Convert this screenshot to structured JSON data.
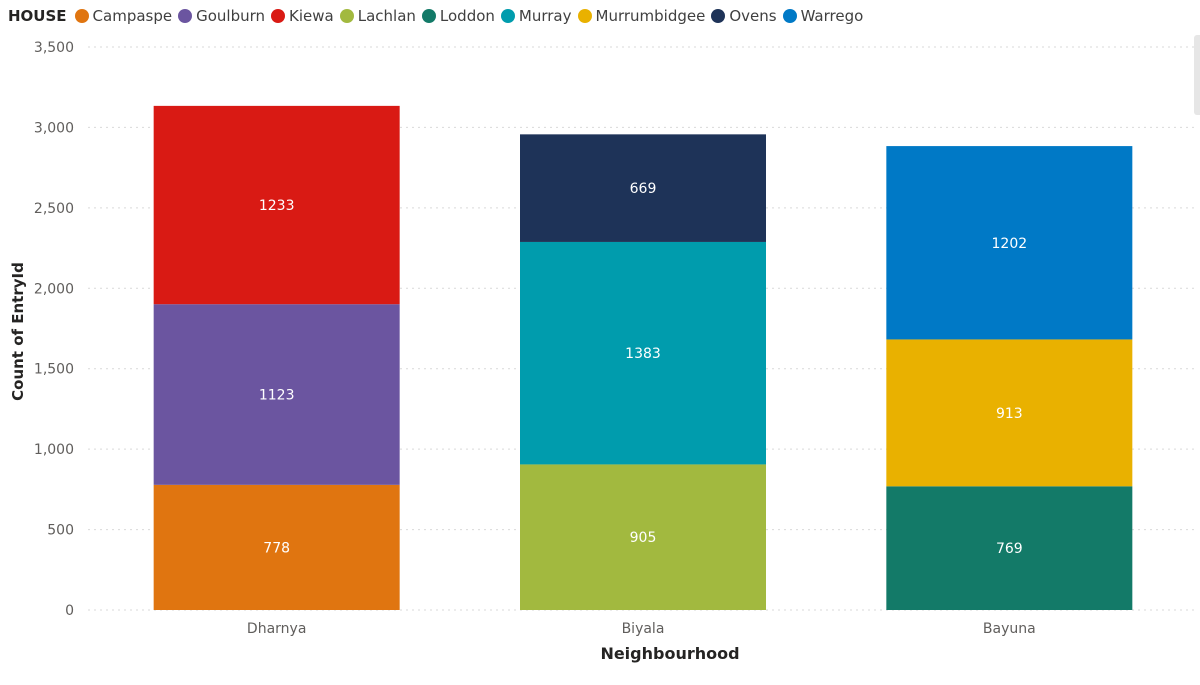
{
  "legend": {
    "title": "HOUSE"
  },
  "chart_data": {
    "type": "bar",
    "stacked": true,
    "categories": [
      "Dharnya",
      "Biyala",
      "Bayuna"
    ],
    "series": [
      {
        "name": "Campaspe",
        "color": "#E07510",
        "values": [
          778,
          0,
          0
        ]
      },
      {
        "name": "Goulburn",
        "color": "#6B55A0",
        "values": [
          1123,
          0,
          0
        ]
      },
      {
        "name": "Kiewa",
        "color": "#D91A14",
        "values": [
          1233,
          0,
          0
        ]
      },
      {
        "name": "Lachlan",
        "color": "#A2B93F",
        "values": [
          0,
          905,
          0
        ]
      },
      {
        "name": "Loddon",
        "color": "#137A68",
        "values": [
          0,
          0,
          769
        ]
      },
      {
        "name": "Murray",
        "color": "#009CAD",
        "values": [
          0,
          1383,
          0
        ]
      },
      {
        "name": "Murrumbidgee",
        "color": "#E9B100",
        "values": [
          0,
          0,
          913
        ]
      },
      {
        "name": "Ovens",
        "color": "#1E3358",
        "values": [
          0,
          669,
          0
        ]
      },
      {
        "name": "Warrego",
        "color": "#0079C6",
        "values": [
          0,
          0,
          1202
        ]
      }
    ],
    "xlabel": "Neighbourhood",
    "ylabel": "Count of EntryId",
    "ylim": [
      0,
      3500
    ],
    "yticks": [
      0,
      500,
      1000,
      1500,
      2000,
      2500,
      3000,
      3500
    ],
    "ytick_labels": [
      "0",
      "500",
      "1,000",
      "1,500",
      "2,000",
      "2,500",
      "3,000",
      "3,500"
    ],
    "grid": true,
    "legend_position": "top-left"
  }
}
